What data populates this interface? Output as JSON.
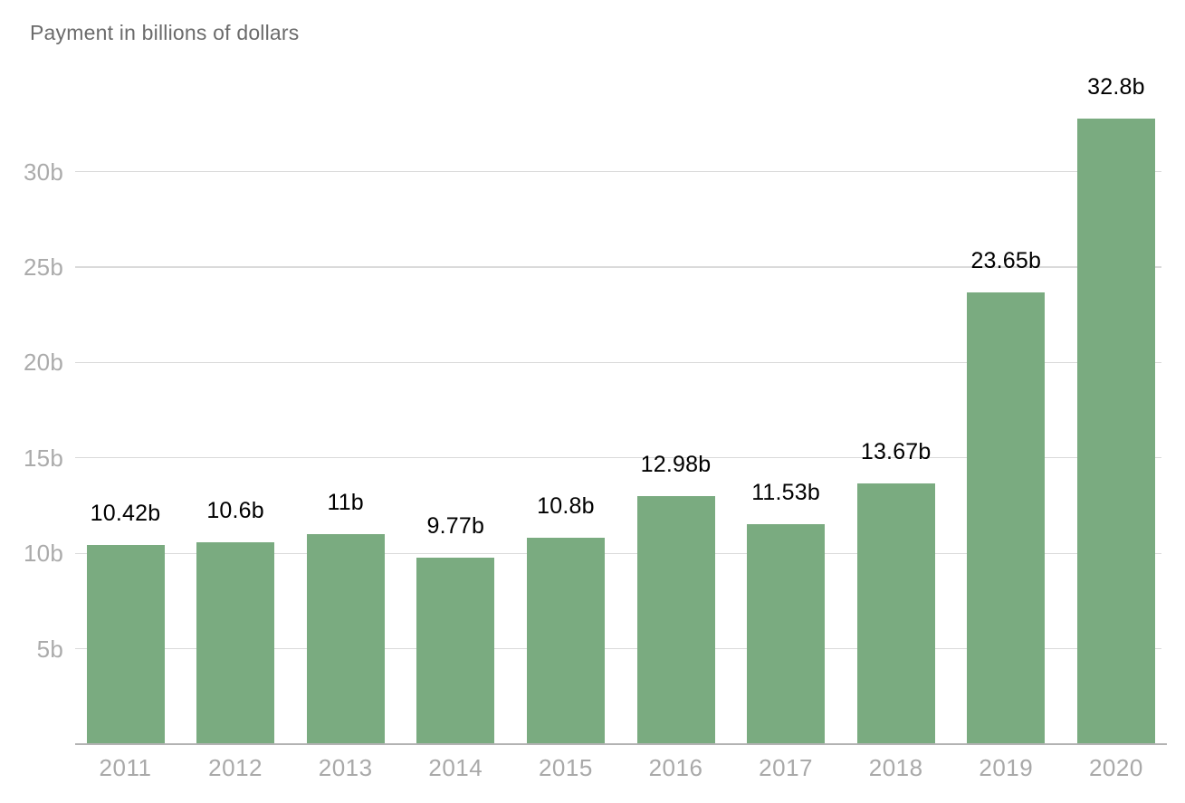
{
  "header": {
    "title": "Payment in billions of dollars"
  },
  "chart_data": {
    "type": "bar",
    "title": "Payment in billions of dollars",
    "categories": [
      "2011",
      "2012",
      "2013",
      "2014",
      "2015",
      "2016",
      "2017",
      "2018",
      "2019",
      "2020"
    ],
    "values": [
      10.42,
      10.6,
      11,
      9.77,
      10.8,
      12.98,
      11.53,
      13.67,
      23.65,
      32.8
    ],
    "bar_labels": [
      "10.42b",
      "10.6b",
      "11b",
      "9.77b",
      "10.8b",
      "12.98b",
      "11.53b",
      "13.67b",
      "23.65b",
      "32.8b"
    ],
    "y_ticks": [
      {
        "value": 5,
        "label": "5b"
      },
      {
        "value": 10,
        "label": "10b"
      },
      {
        "value": 15,
        "label": "15b"
      },
      {
        "value": 20,
        "label": "20b"
      },
      {
        "value": 25,
        "label": "25b"
      },
      {
        "value": 30,
        "label": "30b"
      }
    ],
    "xlabel": "",
    "ylabel": "",
    "ylim": [
      0,
      34
    ],
    "grid": "horizontal-only",
    "legend": "none",
    "colors": {
      "bar": "#7aab80",
      "bar_label": "#000000",
      "axis_label": "#ababab",
      "x_axis_label": "#a9a9a9",
      "gridline": "#dadada",
      "baseline": "#b3b3b3",
      "title": "#6b6b6b",
      "background": "#ffffff"
    }
  }
}
